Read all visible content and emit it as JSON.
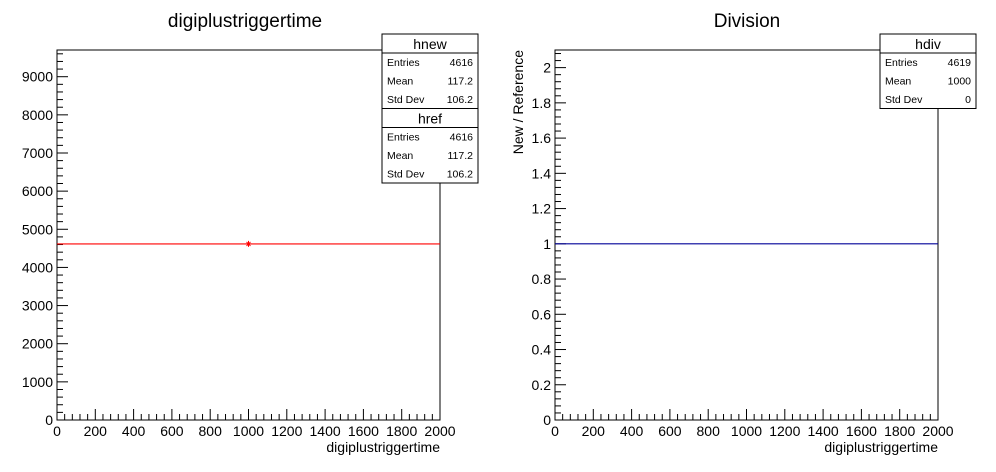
{
  "chart_data": [
    {
      "type": "line",
      "title": "digiplustriggertime",
      "xlabel": "digiplustriggertime",
      "ylabel": "",
      "xlim": [
        0,
        2000
      ],
      "ylim": [
        0,
        9700
      ],
      "x_ticks": [
        0,
        200,
        400,
        600,
        800,
        1000,
        1200,
        1400,
        1600,
        1800,
        2000
      ],
      "x_tick_labels": [
        "0",
        "200",
        "400",
        "600",
        "800",
        "1000",
        "1200",
        "1400",
        "1600",
        "1800",
        "2000"
      ],
      "y_ticks": [
        0,
        1000,
        2000,
        3000,
        4000,
        5000,
        6000,
        7000,
        8000,
        9000
      ],
      "y_tick_labels": [
        "0",
        "1000",
        "2000",
        "3000",
        "4000",
        "5000",
        "6000",
        "7000",
        "8000",
        "9000"
      ],
      "grid": false,
      "series": [
        {
          "name": "hnew",
          "color": "#ff0000",
          "x": [
            0,
            2000
          ],
          "y": [
            4616,
            4616
          ]
        },
        {
          "name": "href",
          "color": "#ff0000",
          "marker": "star",
          "x": [
            1000
          ],
          "y": [
            4616
          ]
        }
      ],
      "stats_boxes": [
        {
          "name": "hnew",
          "rows": [
            {
              "label": "Entries",
              "value": "4616"
            },
            {
              "label": "Mean",
              "value": "117.2"
            },
            {
              "label": "Std Dev",
              "value": "106.2"
            }
          ]
        },
        {
          "name": "href",
          "rows": [
            {
              "label": "Entries",
              "value": "4616"
            },
            {
              "label": "Mean",
              "value": "117.2"
            },
            {
              "label": "Std Dev",
              "value": "106.2"
            }
          ]
        }
      ]
    },
    {
      "type": "line",
      "title": "Division",
      "xlabel": "digiplustriggertime",
      "ylabel": "New / Reference",
      "xlim": [
        0,
        2000
      ],
      "ylim": [
        0,
        2.1
      ],
      "x_ticks": [
        0,
        200,
        400,
        600,
        800,
        1000,
        1200,
        1400,
        1600,
        1800,
        2000
      ],
      "x_tick_labels": [
        "0",
        "200",
        "400",
        "600",
        "800",
        "1000",
        "1200",
        "1400",
        "1600",
        "1800",
        "2000"
      ],
      "y_ticks": [
        0,
        0.2,
        0.4,
        0.6,
        0.8,
        1,
        1.2,
        1.4,
        1.6,
        1.8,
        2
      ],
      "y_tick_labels": [
        "0",
        "0.2",
        "0.4",
        "0.6",
        "0.8",
        "1",
        "1.2",
        "1.4",
        "1.6",
        "1.8",
        "2"
      ],
      "grid": false,
      "series": [
        {
          "name": "hdiv",
          "color": "#000099",
          "x": [
            0,
            2000
          ],
          "y": [
            1,
            1
          ]
        }
      ],
      "stats_boxes": [
        {
          "name": "hdiv",
          "rows": [
            {
              "label": "Entries",
              "value": "4619"
            },
            {
              "label": "Mean",
              "value": "1000"
            },
            {
              "label": "Std Dev",
              "value": "0"
            }
          ]
        }
      ]
    }
  ]
}
